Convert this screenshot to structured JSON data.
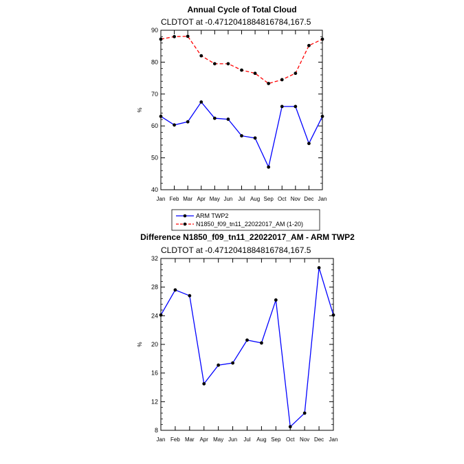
{
  "chart_data": [
    {
      "type": "line",
      "title": "Annual Cycle of Total Cloud",
      "subtitle": "CLDTOT at -0.4712041884816784,167.5",
      "ylabel": "%",
      "ylim": [
        40,
        90
      ],
      "yticks": [
        40,
        50,
        60,
        70,
        80,
        90
      ],
      "categories": [
        "Jan",
        "Feb",
        "Mar",
        "Apr",
        "May",
        "Jun",
        "Jul",
        "Aug",
        "Sep",
        "Oct",
        "Nov",
        "Dec",
        "Jan"
      ],
      "series": [
        {
          "name": "ARM TWP2",
          "color": "#0000ff",
          "dash": "solid",
          "values": [
            63.0,
            60.3,
            61.3,
            67.5,
            62.4,
            62.1,
            56.9,
            56.2,
            47.1,
            66.1,
            66.1,
            54.5,
            63.0
          ]
        },
        {
          "name": "N1850_f09_tn11_22022017_AM (1-20)",
          "color": "#ff0000",
          "dash": "dashed",
          "values": [
            87.2,
            88.0,
            88.1,
            82.0,
            79.5,
            79.5,
            77.5,
            76.5,
            73.3,
            74.5,
            76.5,
            85.2,
            87.2
          ]
        }
      ],
      "legend_position": "bottom-left"
    },
    {
      "type": "line",
      "title": "Difference N1850_f09_tn11_22022017_AM - ARM TWP2",
      "subtitle": "CLDTOT at -0.4712041884816784,167.5",
      "ylabel": "%",
      "ylim": [
        8,
        32
      ],
      "yticks": [
        8,
        12,
        16,
        20,
        24,
        28,
        32
      ],
      "categories": [
        "Jan",
        "Feb",
        "Mar",
        "Apr",
        "May",
        "Jun",
        "Jul",
        "Aug",
        "Sep",
        "Oct",
        "Nov",
        "Dec",
        "Jan"
      ],
      "series": [
        {
          "color": "#0000ff",
          "dash": "solid",
          "values": [
            24.1,
            27.6,
            26.8,
            14.5,
            17.1,
            17.4,
            20.6,
            20.2,
            26.2,
            8.5,
            10.4,
            30.7,
            24.1
          ]
        }
      ]
    }
  ]
}
